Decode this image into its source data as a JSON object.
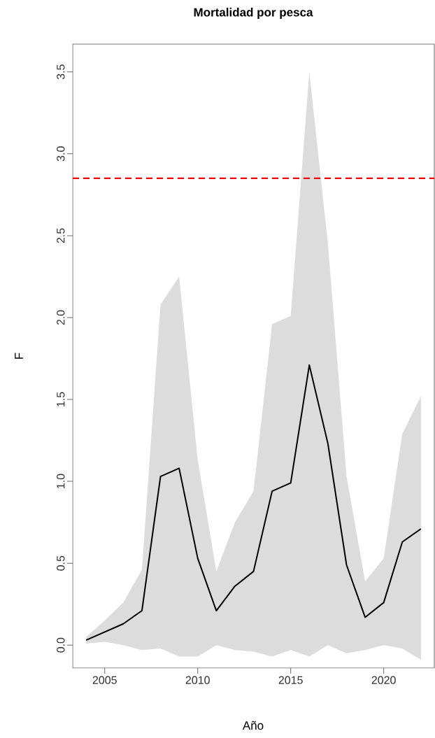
{
  "chart_data": {
    "type": "line",
    "title": "Mortalidad por pesca",
    "xlabel": "Año",
    "ylabel": "F",
    "x": [
      2004,
      2005,
      2006,
      2007,
      2008,
      2009,
      2010,
      2011,
      2012,
      2013,
      2014,
      2015,
      2016,
      2017,
      2018,
      2019,
      2020,
      2021,
      2022
    ],
    "series": [
      {
        "color": "#000000",
        "values": [
          0.03,
          0.08,
          0.13,
          0.21,
          1.03,
          1.08,
          0.53,
          0.21,
          0.36,
          0.45,
          0.94,
          0.99,
          1.71,
          1.23,
          0.49,
          0.17,
          0.26,
          0.63,
          0.71
        ],
        "upper": [
          0.05,
          0.15,
          0.26,
          0.46,
          2.08,
          2.25,
          1.13,
          0.45,
          0.75,
          0.94,
          1.96,
          2.01,
          3.5,
          2.45,
          1.03,
          0.39,
          0.53,
          1.29,
          1.52
        ],
        "lower": [
          0.01,
          0.02,
          0.0,
          -0.03,
          -0.02,
          -0.07,
          -0.07,
          0.0,
          -0.03,
          -0.04,
          -0.07,
          -0.03,
          -0.07,
          0.0,
          -0.05,
          -0.03,
          0.0,
          -0.02,
          -0.09
        ]
      }
    ],
    "xlim": [
      2003.28,
      2022.72
    ],
    "ylim": [
      -0.14,
      3.67
    ],
    "xticks": [
      2005,
      2010,
      2015,
      2020
    ],
    "yticks": [
      {
        "value": 0,
        "label": "0.0"
      },
      {
        "value": 0.5,
        "label": "0.5"
      },
      {
        "value": 1,
        "label": "1.0"
      },
      {
        "value": 1.5,
        "label": "1.5"
      },
      {
        "value": 2,
        "label": "2.0"
      },
      {
        "value": 2.5,
        "label": "2.5"
      },
      {
        "value": 3,
        "label": "3.0"
      },
      {
        "value": 3.5,
        "label": "3.5"
      }
    ],
    "ref_lines": [
      {
        "axis": "y",
        "value": 2.85,
        "color": "#ff0000",
        "line_style": "dashed"
      }
    ],
    "grid": false,
    "marker": "none",
    "line_style": "solid"
  }
}
